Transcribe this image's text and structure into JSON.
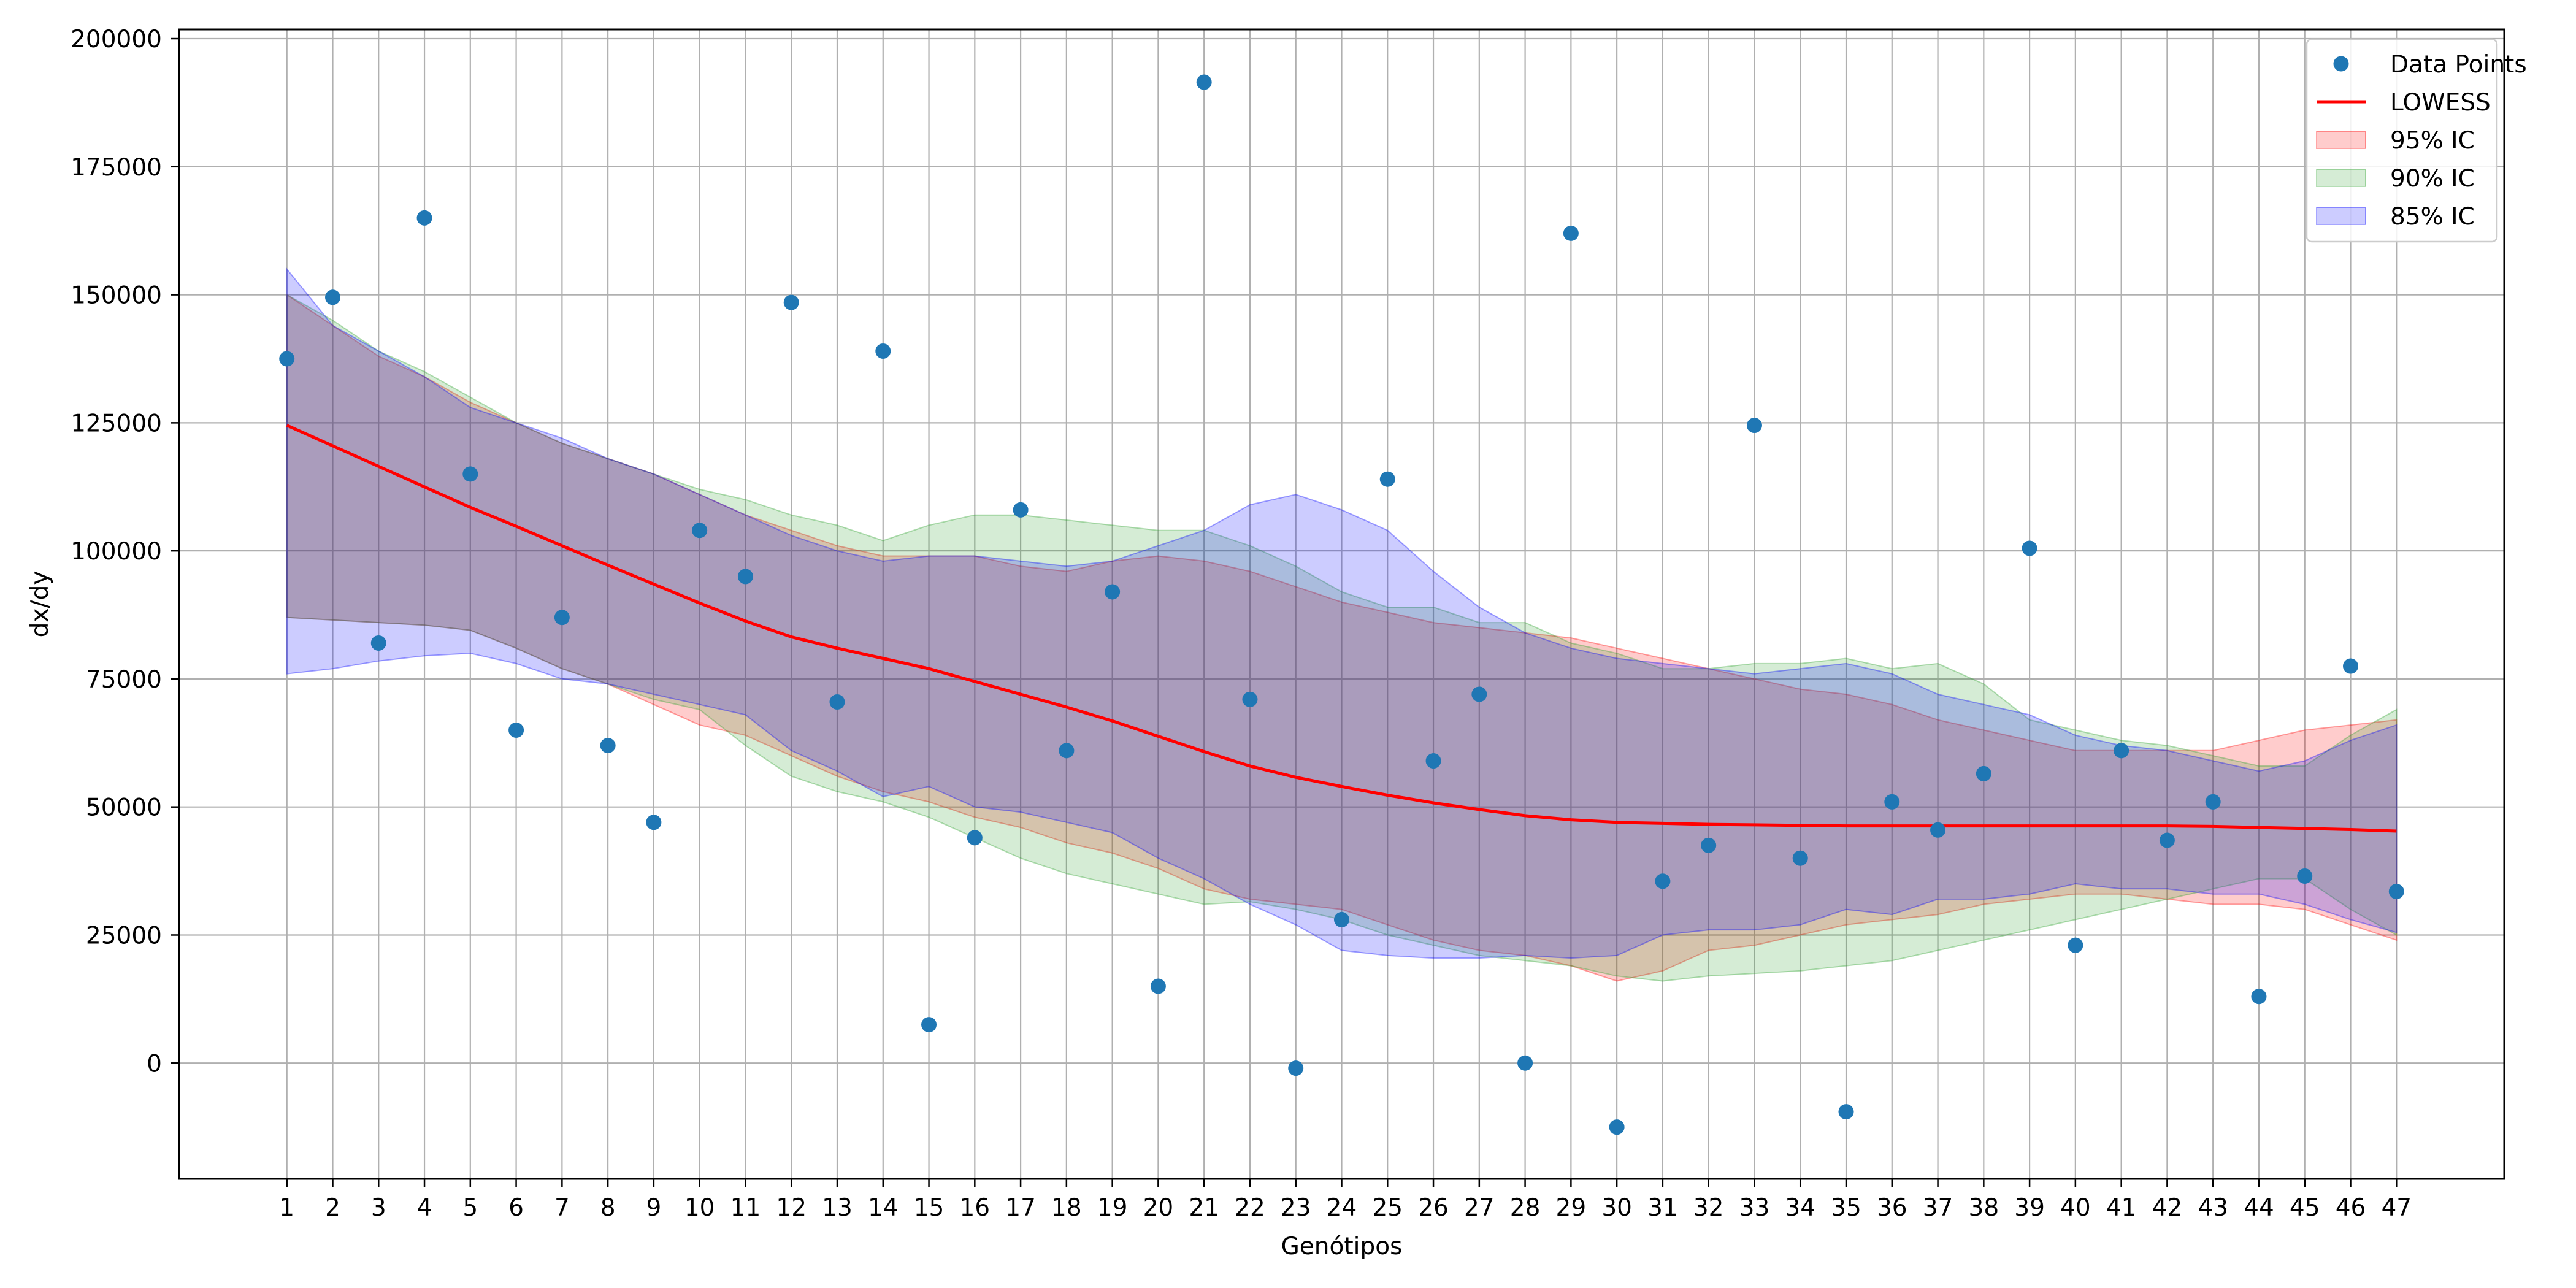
{
  "chart_data": {
    "type": "scatter",
    "title": "",
    "xlabel": "Genótipos",
    "ylabel": "dx/dy",
    "xlim": [
      -1.35,
      49.35
    ],
    "ylim": [
      -22600,
      201800
    ],
    "grid": true,
    "legend_position": "top-right",
    "x_ticks": [
      1,
      2,
      3,
      4,
      5,
      6,
      7,
      8,
      9,
      10,
      11,
      12,
      13,
      14,
      15,
      16,
      17,
      18,
      19,
      20,
      21,
      22,
      23,
      24,
      25,
      26,
      27,
      28,
      29,
      30,
      31,
      32,
      33,
      34,
      35,
      36,
      37,
      38,
      39,
      40,
      41,
      42,
      43,
      44,
      45,
      46,
      47
    ],
    "y_ticks": [
      0,
      25000,
      50000,
      75000,
      100000,
      125000,
      150000,
      175000,
      200000
    ],
    "y_tick_labels": [
      "0",
      "25000",
      "50000",
      "75000",
      "100000",
      "125000",
      "150000",
      "175000",
      "200000"
    ],
    "x": [
      1,
      2,
      3,
      4,
      5,
      6,
      7,
      8,
      9,
      10,
      11,
      12,
      13,
      14,
      15,
      16,
      17,
      18,
      19,
      20,
      21,
      22,
      23,
      24,
      25,
      26,
      27,
      28,
      29,
      30,
      31,
      32,
      33,
      34,
      35,
      36,
      37,
      38,
      39,
      40,
      41,
      42,
      43,
      44,
      45,
      46,
      47
    ],
    "series": [
      {
        "name": "Data Points",
        "kind": "scatter",
        "color": "#1f77b4",
        "values": [
          137500,
          149500,
          82000,
          165000,
          115000,
          65000,
          87000,
          62000,
          47000,
          104000,
          95000,
          148500,
          70500,
          139000,
          7500,
          44000,
          108000,
          61000,
          92000,
          15000,
          191500,
          71000,
          -1000,
          28000,
          114000,
          59000,
          72000,
          0,
          162000,
          -12500,
          35500,
          42500,
          124500,
          40000,
          -9500,
          51000,
          45500,
          56500,
          100500,
          23000,
          61000,
          43500,
          51000,
          13000,
          36500,
          77500,
          33500
        ]
      },
      {
        "name": "LOWESS",
        "kind": "line",
        "color": "#ff0000",
        "values": [
          124500,
          120500,
          116500,
          112500,
          108500,
          104800,
          101000,
          97200,
          93500,
          89800,
          86300,
          83200,
          81000,
          79000,
          77000,
          74500,
          72000,
          69500,
          66800,
          63800,
          60800,
          58000,
          55800,
          54000,
          52300,
          50800,
          49500,
          48300,
          47500,
          47000,
          46800,
          46600,
          46500,
          46400,
          46300,
          46300,
          46300,
          46300,
          46300,
          46300,
          46300,
          46300,
          46200,
          46000,
          45800,
          45600,
          45300
        ]
      },
      {
        "name": "95% IC",
        "kind": "band",
        "color": "#ff0000",
        "lower": [
          87000,
          86500,
          86000,
          85500,
          84500,
          81000,
          77000,
          74000,
          70000,
          66000,
          64000,
          60000,
          56000,
          53000,
          51000,
          48000,
          46000,
          43000,
          41000,
          38000,
          34000,
          32000,
          31000,
          30000,
          27000,
          24000,
          22000,
          21000,
          19000,
          16000,
          18000,
          22000,
          23000,
          25000,
          27000,
          28000,
          29000,
          31000,
          32000,
          33000,
          33000,
          32000,
          31000,
          31000,
          30000,
          27000,
          24000
        ],
        "upper": [
          150000,
          144000,
          138000,
          134000,
          129000,
          125000,
          121000,
          118000,
          115000,
          111000,
          107000,
          104000,
          101000,
          99000,
          99000,
          99000,
          97000,
          96000,
          98000,
          99000,
          98000,
          96000,
          93000,
          90000,
          88000,
          86000,
          85000,
          84000,
          83000,
          81000,
          79000,
          77000,
          75000,
          73000,
          72000,
          70000,
          67000,
          65000,
          63000,
          61000,
          61000,
          61000,
          61000,
          63000,
          65000,
          66000,
          67000
        ]
      },
      {
        "name": "90% IC",
        "kind": "band",
        "color": "#2ca02c",
        "lower": [
          87000,
          86500,
          86000,
          85500,
          84500,
          81000,
          77000,
          74000,
          71000,
          69000,
          62000,
          56000,
          53000,
          51000,
          48000,
          44000,
          40000,
          37000,
          35000,
          33000,
          31000,
          31500,
          30000,
          28000,
          25000,
          23000,
          21000,
          20000,
          19000,
          17000,
          16000,
          17000,
          17500,
          18000,
          19000,
          20000,
          22000,
          24000,
          26000,
          28000,
          30000,
          32000,
          34000,
          36000,
          36000,
          30000,
          25000
        ],
        "upper": [
          150000,
          145000,
          139000,
          135000,
          130000,
          125000,
          121000,
          118000,
          115000,
          112000,
          110000,
          107000,
          105000,
          102000,
          105000,
          107000,
          107000,
          106000,
          105000,
          104000,
          104000,
          101000,
          97000,
          92000,
          89000,
          89000,
          86000,
          86000,
          82000,
          80000,
          77000,
          77000,
          78000,
          78000,
          79000,
          77000,
          78000,
          74000,
          67000,
          65000,
          63000,
          62000,
          60000,
          58000,
          58000,
          64000,
          69000
        ]
      },
      {
        "name": "85% IC",
        "kind": "band",
        "color": "#0000ff",
        "lower": [
          76000,
          77000,
          78500,
          79500,
          80000,
          78000,
          75000,
          74000,
          72000,
          70000,
          68000,
          61000,
          57000,
          52000,
          54000,
          50000,
          49000,
          47000,
          45000,
          40000,
          36000,
          31000,
          27000,
          22000,
          21000,
          20500,
          20500,
          21000,
          20500,
          21000,
          25000,
          26000,
          26000,
          27000,
          30000,
          29000,
          32000,
          32000,
          33000,
          35000,
          34000,
          34000,
          33000,
          33000,
          31000,
          28000,
          25500
        ],
        "upper": [
          155000,
          144000,
          139000,
          134000,
          128000,
          125000,
          122000,
          118000,
          115000,
          111000,
          107000,
          103000,
          100000,
          98000,
          99000,
          99000,
          98000,
          97000,
          98000,
          101000,
          104000,
          109000,
          111000,
          108000,
          104000,
          96000,
          89000,
          84000,
          81000,
          79000,
          78000,
          77000,
          76000,
          77000,
          78000,
          76000,
          72000,
          70000,
          68000,
          64000,
          62000,
          61000,
          59000,
          57000,
          59000,
          63000,
          66000
        ]
      }
    ]
  }
}
